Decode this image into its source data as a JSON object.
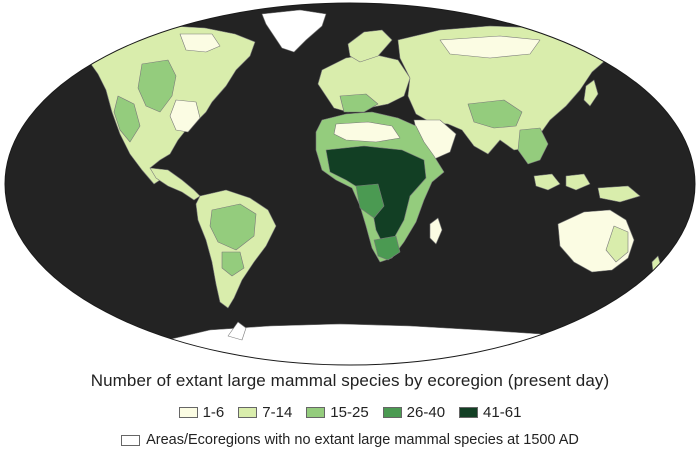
{
  "title": "Number of extant large mammal species by ecoregion (present day)",
  "legend": {
    "bins": [
      {
        "label": "1-6",
        "color": "#fbfce3"
      },
      {
        "label": "7-14",
        "color": "#d9edac"
      },
      {
        "label": "15-25",
        "color": "#94cc7d"
      },
      {
        "label": "26-40",
        "color": "#4b9a52"
      },
      {
        "label": "41-61",
        "color": "#123f24"
      }
    ],
    "extinct_label": "Areas/Ecoregions with no extant large mammal species at 1500 AD",
    "extinct_color": "#ffffff"
  },
  "map": {
    "ocean_color": "#232323",
    "ice_color": "#ffffff",
    "border_color": "#777777"
  }
}
